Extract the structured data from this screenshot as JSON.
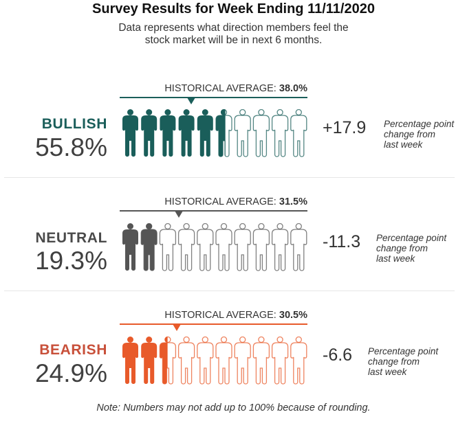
{
  "title": "Survey Results for Week Ending 11/11/2020",
  "subtitle_line1": "Data represents what direction members feel the",
  "subtitle_line2": "stock market will be in next 6 months.",
  "historical_label": "HISTORICAL AVERAGE:",
  "change_desc_line1": "Percentage point",
  "change_desc_line2": "change from",
  "change_desc_line3": "last week",
  "note": "Note: Numbers may not add up to 100% because of rounding.",
  "colors": {
    "bullish": "#1a5e5a",
    "neutral": "#555555",
    "bearish": "#e85a2a",
    "neutral_label": "#4a4a4a",
    "bearish_label": "#c8503a"
  },
  "chart_data": {
    "type": "pictograph",
    "title": "Survey Results for Week Ending 11/11/2020",
    "icons_per_row": 10,
    "unit": "percent",
    "series": [
      {
        "name": "BULLISH",
        "value": 55.8,
        "value_label": "55.8%",
        "historical_average": 38.0,
        "historical_label": "38.0%",
        "change": 17.9,
        "change_label": "+17.9",
        "color": "#1a5e5a"
      },
      {
        "name": "NEUTRAL",
        "value": 19.3,
        "value_label": "19.3%",
        "historical_average": 31.5,
        "historical_label": "31.5%",
        "change": -11.3,
        "change_label": "-11.3",
        "color": "#555555"
      },
      {
        "name": "BEARISH",
        "value": 24.9,
        "value_label": "24.9%",
        "historical_average": 30.5,
        "historical_label": "30.5%",
        "change": -6.6,
        "change_label": "-6.6",
        "color": "#e85a2a"
      }
    ]
  }
}
